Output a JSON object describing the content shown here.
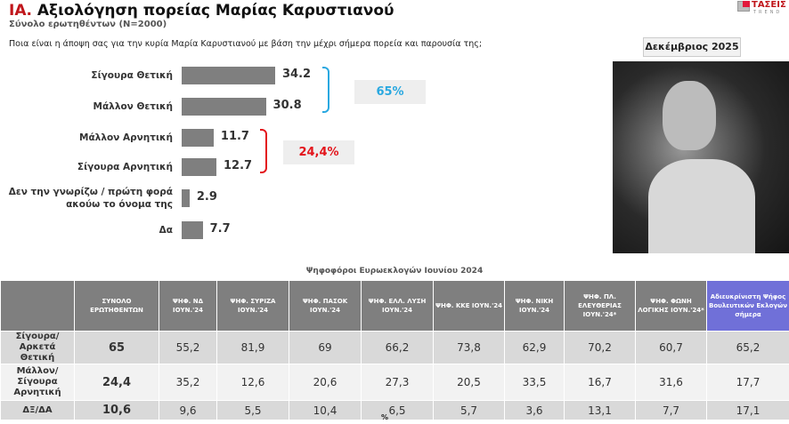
{
  "header": {
    "title_prefix": "ΙΑ.",
    "title": "Αξιολόγηση πορείας Μαρίας Καρυστιανού",
    "subtitle": "Σύνολο ερωτηθέντων (N=2000)",
    "question": "Ποια είναι η άποψη σας για την κυρία Μαρία Καρυστιανού με βάση την μέχρι σήμερα πορεία και παρουσία της;",
    "logo": "ΤΑΣΕΙΣ TREND",
    "date": "Δεκέμβριος 2025"
  },
  "chart_data": {
    "type": "bar",
    "orientation": "horizontal",
    "categories": [
      "Σίγουρα Θετική",
      "Μάλλον Θετική",
      "Μάλλον Αρνητική",
      "Σίγουρα Αρνητική",
      "Δεν την γνωρίζω / πρώτη φορά ακούω το όνομα της",
      "Δα"
    ],
    "values": [
      34.2,
      30.8,
      11.7,
      12.7,
      2.9,
      7.7
    ],
    "value_labels": [
      "34.2",
      "30.8",
      "11.7",
      "12.7",
      "2.9",
      "7.7"
    ],
    "bar_color": "#7f7f7f",
    "groups": [
      {
        "label": "65%",
        "color": "#29a8e0"
      },
      {
        "label": "24,4%",
        "color": "#e3141b"
      }
    ]
  },
  "table": {
    "title": "Ψηφοφόροι Ευρωεκλογών Ιουνίου 2024",
    "columns": [
      "",
      "ΣΥΝΟΛΟ ΕΡΩΤΗΘΕΝΤΩΝ",
      "ΨΗΦ. ΝΔ ΙΟΥΝ.'24",
      "ΨΗΦ. ΣΥΡΙΖΑ ΙΟΥΝ.'24",
      "ΨΗΦ. ΠΑΣΟΚ ΙΟΥΝ.'24",
      "ΨΗΦ. ΕΛΛ. ΛΥΣΗ ΙΟΥΝ.'24",
      "ΨΗΦ. ΚΚΕ ΙΟΥΝ.'24",
      "ΨΗΦ. ΝΙΚΗ ΙΟΥΝ.'24",
      "ΨΗΦ. ΠΛ. ΕΛΕΥΘΕΡΙΑΣ ΙΟΥΝ.'24*",
      "ΨΗΦ. ΦΩΝΗ ΛΟΓΙΚΗΣ ΙΟΥΝ.'24*",
      "Αδιευκρίνιστη Ψήφος Βουλευτικών Εκλογών σήμερα"
    ],
    "rows": [
      [
        "Σίγουρα/Αρκετά Θετική",
        "65",
        "55,2",
        "81,9",
        "69",
        "66,2",
        "73,8",
        "62,9",
        "70,2",
        "60,7",
        "65,2"
      ],
      [
        "Μάλλον/Σίγουρα Αρνητική",
        "24,4",
        "35,2",
        "12,6",
        "20,6",
        "27,3",
        "20,5",
        "33,5",
        "16,7",
        "31,6",
        "17,7"
      ],
      [
        "ΔΞ/ΔΑ",
        "10,6",
        "9,6",
        "5,5",
        "10,4",
        "6,5",
        "5,7",
        "3,6",
        "13,1",
        "7,7",
        "17,1"
      ]
    ],
    "unit": "%"
  }
}
